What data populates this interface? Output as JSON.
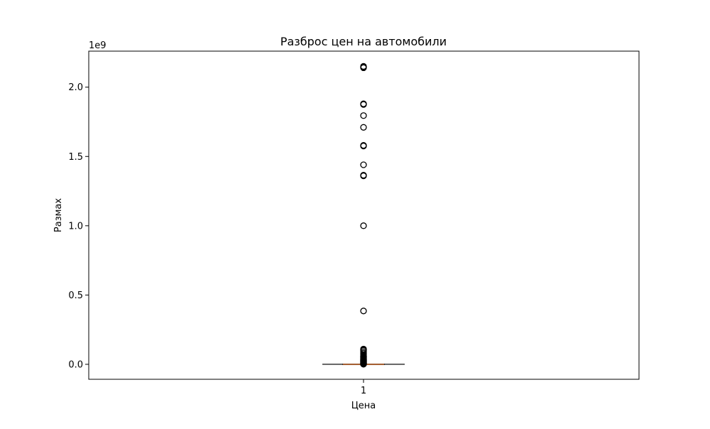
{
  "chart_data": {
    "type": "boxplot",
    "title": "Разброс цен на автомобили",
    "xlabel": "Цена",
    "ylabel": "Размах",
    "offset_label": "1e9",
    "categories": [
      "1"
    ],
    "x_ticks": [
      "1"
    ],
    "y_ticks": [
      {
        "value": 0.0,
        "label": "0.0"
      },
      {
        "value": 0.5,
        "label": "0.5"
      },
      {
        "value": 1.0,
        "label": "1.0"
      },
      {
        "value": 1.5,
        "label": "1.5"
      },
      {
        "value": 2.0,
        "label": "2.0"
      }
    ],
    "ylim": [
      -0.108,
      2.26
    ],
    "y_scale_factor": 1000000000,
    "grid": false,
    "box": {
      "whisker_low": 0.0,
      "q1": 0.0,
      "median": 0.0,
      "q3": 0.0,
      "whisker_high": 0.0
    },
    "outliers": [
      0.001,
      0.002,
      0.004,
      0.006,
      0.008,
      0.01,
      0.012,
      0.015,
      0.018,
      0.021,
      0.024,
      0.027,
      0.03,
      0.033,
      0.036,
      0.04,
      0.044,
      0.048,
      0.052,
      0.056,
      0.06,
      0.07,
      0.08,
      0.09,
      0.1,
      0.105,
      0.11,
      0.385,
      1.0,
      1.36,
      1.365,
      1.44,
      1.575,
      1.58,
      1.71,
      1.795,
      1.875,
      1.88,
      2.14,
      2.145,
      2.15
    ],
    "colors": {
      "box": "#000000",
      "median": "#c8733a",
      "outlier_edge": "#000000"
    }
  }
}
